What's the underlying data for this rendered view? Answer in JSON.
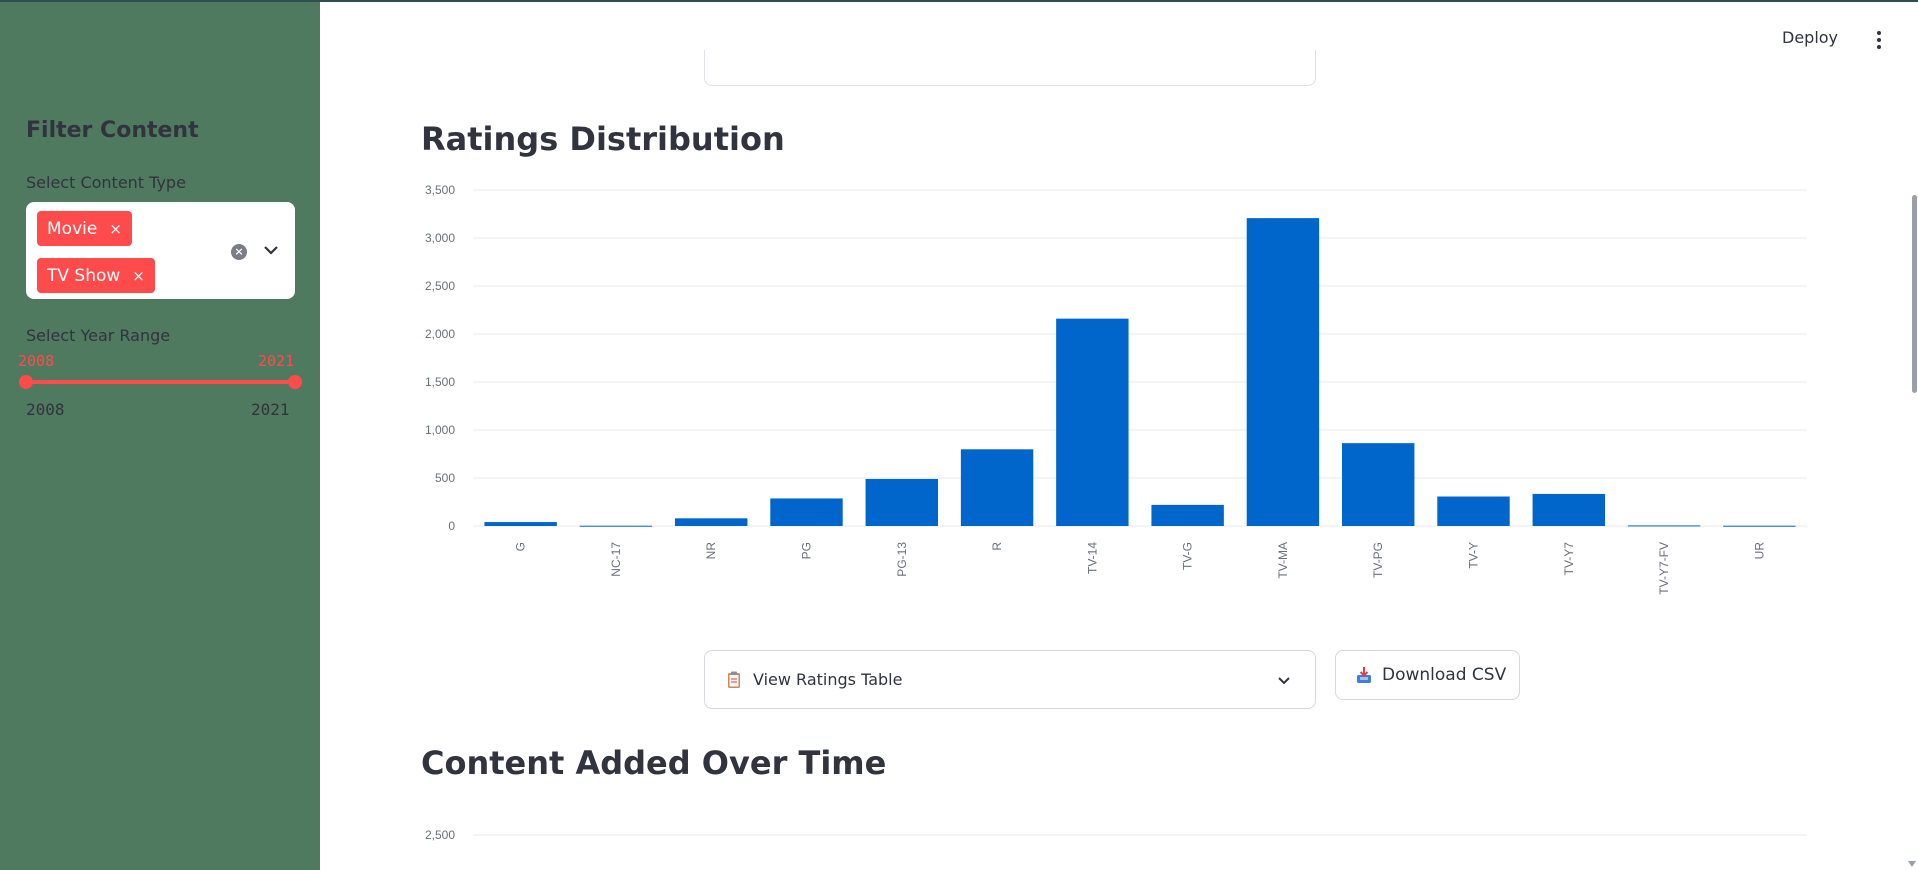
{
  "header": {
    "deploy_label": "Deploy",
    "menu_icon": "more-vertical-icon"
  },
  "sidebar": {
    "title": "Filter Content",
    "content_type": {
      "label": "Select Content Type",
      "selected": [
        "Movie",
        "TV Show"
      ],
      "tag_remove_glyph": "×",
      "clear_icon": "clear-circle-icon",
      "dropdown_icon": "chevron-down-icon"
    },
    "year_range": {
      "label": "Select Year Range",
      "value_min": "2008",
      "value_max": "2021",
      "range_min": "2008",
      "range_max": "2021"
    }
  },
  "main": {
    "ratings_title": "Ratings Distribution",
    "ratings_expander": {
      "icon": "clipboard-icon",
      "label": "View Ratings Table"
    },
    "download_button": {
      "icon": "inbox-tray-icon",
      "label": "Download CSV"
    },
    "time_title": "Content Added Over Time"
  },
  "colors": {
    "sidebar_bg": "#4f7a5f",
    "accent": "#ff4b4b",
    "bar": "#0066cc",
    "text": "#31333f"
  },
  "chart_data": [
    {
      "type": "bar",
      "categories": [
        "G",
        "NC-17",
        "NR",
        "PG",
        "PG-13",
        "R",
        "TV-14",
        "TV-G",
        "TV-MA",
        "TV-PG",
        "TV-Y",
        "TV-Y7",
        "TV-Y7-FV",
        "UR"
      ],
      "values": [
        41,
        3,
        80,
        287,
        490,
        799,
        2160,
        220,
        3207,
        863,
        307,
        334,
        6,
        3
      ],
      "title": "",
      "xlabel": "",
      "ylabel": "",
      "ylim": [
        0,
        3500
      ],
      "yticks": [
        "0",
        "500",
        "1,000",
        "1,500",
        "2,000",
        "2,500",
        "3,000",
        "3,500"
      ],
      "grid": true,
      "color": "#0066cc"
    },
    {
      "type": "line",
      "title": "",
      "yticks_visible": [
        "2,500"
      ],
      "grid": true
    }
  ]
}
